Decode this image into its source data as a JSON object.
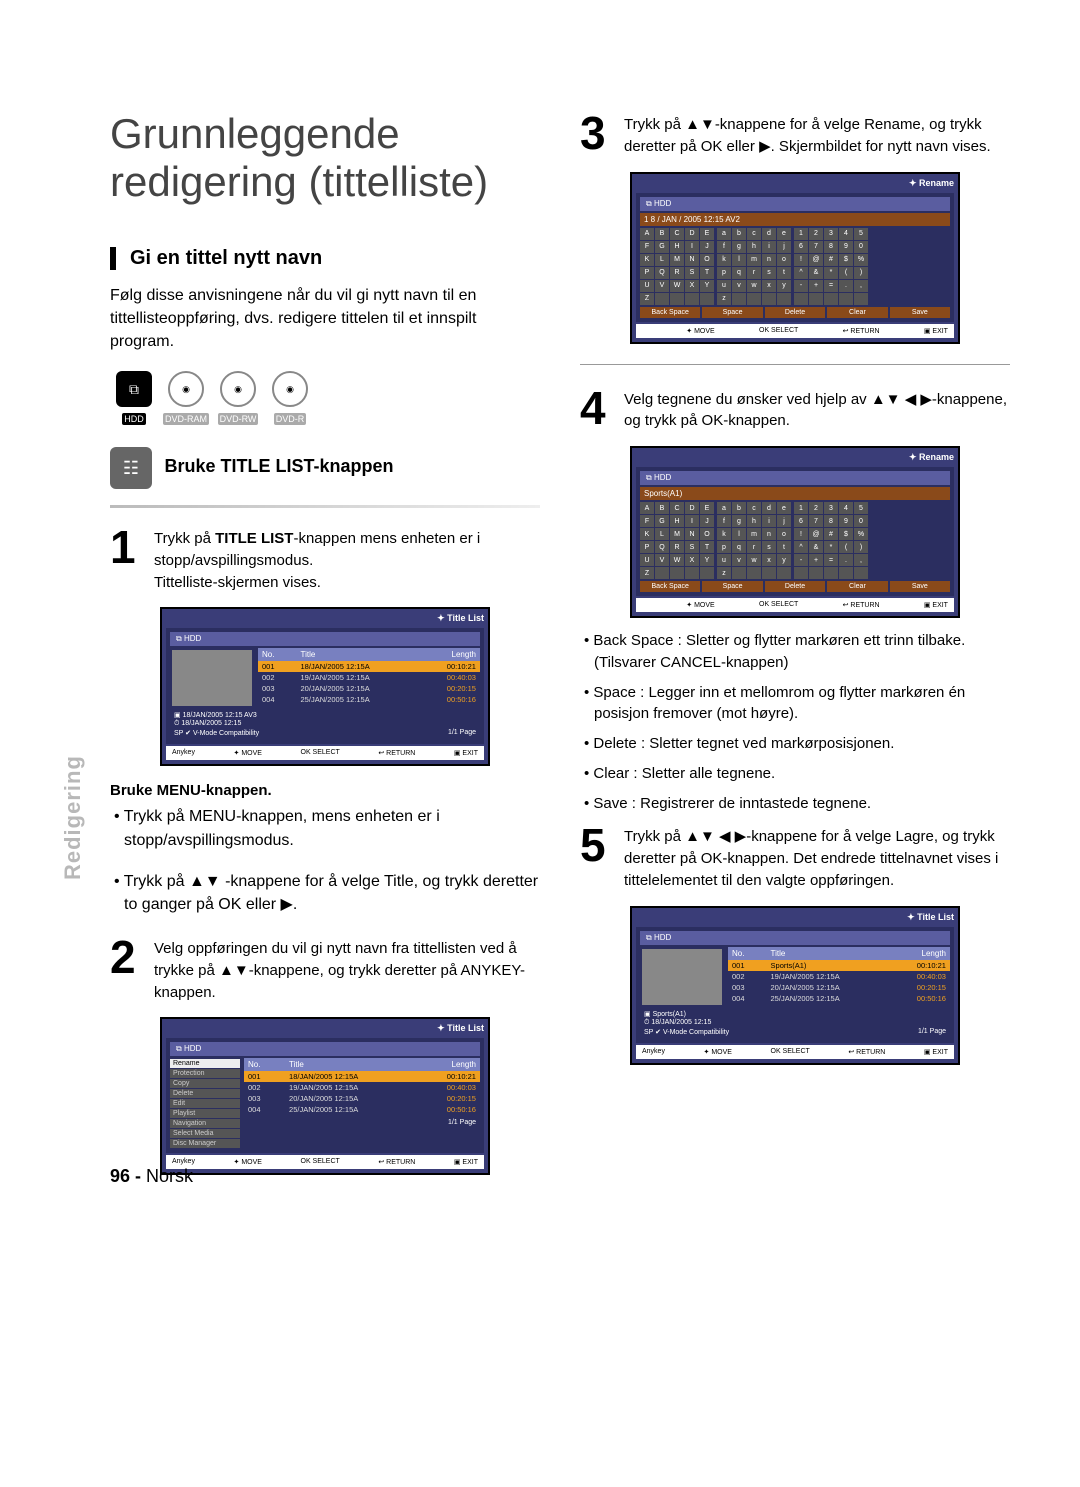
{
  "sidebar": "Redigering",
  "main_title_l1": "Grunnleggende",
  "main_title_l2": "redigering (tittelliste)",
  "section_heading": "Gi en tittel nytt navn",
  "intro": "Følg disse anvisningene når du vil gi nytt navn til en tittellisteoppføring, dvs. redigere tittelen til et innspilt program.",
  "disc_labels": {
    "hdd": "HDD",
    "ram": "DVD-RAM",
    "rw": "DVD-RW",
    "r": "DVD-R"
  },
  "subhead_title_list": "Bruke TITLE LIST-knappen",
  "step1_a": "Trykk på ",
  "step1_b": "TITLE LIST",
  "step1_c": "-knappen mens enheten er i stopp/avspillingsmodus.",
  "step1_d": "Tittelliste-skjermen vises.",
  "menu_heading": "Bruke MENU-knappen.",
  "menu_b1": "• Trykk på MENU-knappen, mens enheten er i stopp/avspillingsmodus.",
  "menu_b2": "• Trykk på ▲▼ -knappene for å velge Title, og trykk deretter to ganger på OK eller ▶.",
  "step2": "Velg oppføringen du vil gi nytt navn fra tittellisten ved å trykke på ▲▼-knappene, og trykk deretter på ANYKEY-knappen.",
  "step3": "Trykk på ▲▼-knappene for å velge Rename, og trykk deretter på OK eller ▶. Skjermbildet for nytt navn vises.",
  "step4": "Velg tegnene du ønsker ved hjelp av ▲▼ ◀ ▶-knappene, og trykk på OK-knappen.",
  "bullets": [
    "• Back Space : Sletter og flytter markøren ett trinn tilbake. (Tilsvarer CANCEL-knappen)",
    "• Space : Legger inn et mellomrom og flytter markøren én posisjon fremover (mot høyre).",
    "• Delete : Sletter tegnet ved markørposisjonen.",
    "• Clear : Sletter alle tegnene.",
    "• Save : Registrerer de inntastede tegnene."
  ],
  "step5": "Trykk på ▲▼ ◀ ▶-knappene for å velge Lagre, og trykk deretter på OK-knappen. Det endrede tittelnavnet vises i tittelelementet til den valgte oppføringen.",
  "osd": {
    "title_list": "Title List",
    "rename": "Rename",
    "hdd": "HDD",
    "columns": {
      "no": "No.",
      "title": "Title",
      "length": "Length"
    },
    "rows": [
      {
        "no": "001",
        "title": "18/JAN/2005 12:15A",
        "len": "00:10:21"
      },
      {
        "no": "002",
        "title": "19/JAN/2005 12:15A",
        "len": "00:40:03"
      },
      {
        "no": "003",
        "title": "20/JAN/2005 12:15A",
        "len": "00:20:15"
      },
      {
        "no": "004",
        "title": "25/JAN/2005 12:15A",
        "len": "00:50:16"
      }
    ],
    "sports_row": {
      "no": "001",
      "title": "Sports(A1)",
      "len": "00:10:21"
    },
    "meta1": "18/JAN/2005 12:15 AV3",
    "meta2": "18/JAN/2005 12:15",
    "meta1_b": "Sports(A1)",
    "meta2_b": "18/JAN/2005 12:15",
    "meta3": "SP ✔ V-Mode Compatibility",
    "page": "1/1 Page",
    "foot": {
      "anykey": "Anykey",
      "move": "✦ MOVE",
      "select": "OK SELECT",
      "ret": "↩ RETURN",
      "exit": "▣ EXIT"
    },
    "menu": [
      "Rename",
      "Protection",
      "Copy",
      "Delete",
      "Edit",
      "Playlist",
      "Navigation",
      "Select Media",
      "Disc Manager"
    ],
    "kbd_bottom": [
      "Back Space",
      "Space",
      "Delete",
      "Clear",
      "Save"
    ],
    "rename_title": "1 8 / JAN / 2005 12:15 AV2",
    "rename_title2": "Sports(A1)"
  },
  "page_number": "96 -",
  "page_lang": "Norsk"
}
